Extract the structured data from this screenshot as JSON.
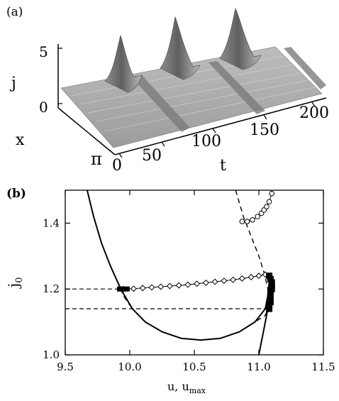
{
  "panels": {
    "a": {
      "label": "(a)",
      "z_label": "j",
      "z_ticks": [
        "5",
        "0"
      ],
      "x_label": "x",
      "x_ticks": [
        "π",
        "0"
      ],
      "t_label": "t",
      "t_ticks": [
        "0",
        "50",
        "100",
        "150",
        "200"
      ]
    },
    "b": {
      "label": "(b)",
      "ylabel_main": "j",
      "ylabel_sub": "0",
      "xlabel_main": "u, u",
      "xlabel_sub": "max",
      "xticks": [
        "9.5",
        "10.0",
        "10.5",
        "11.0",
        "11.5"
      ],
      "yticks": [
        "1.0",
        "1.2",
        "1.4"
      ]
    }
  },
  "chart_data": [
    {
      "type": "surface",
      "panel": "a",
      "x_range": [
        0,
        3.1416
      ],
      "t_range": [
        0,
        200
      ],
      "z_range": [
        0,
        5
      ],
      "pulse_times": [
        28,
        93,
        160
      ],
      "pulse_peak_j": 5,
      "baseline_j": 1.2
    },
    {
      "type": "line",
      "panel": "b",
      "xlim": [
        9.5,
        11.5
      ],
      "ylim": [
        1.0,
        1.5
      ],
      "grid": false,
      "series": [
        {
          "style": "solid",
          "points": [
            [
              9.67,
              1.5
            ],
            [
              9.72,
              1.42
            ],
            [
              9.78,
              1.34
            ],
            [
              9.85,
              1.27
            ],
            [
              9.93,
              1.2
            ],
            [
              10.02,
              1.14
            ],
            [
              10.12,
              1.1
            ],
            [
              10.25,
              1.07
            ],
            [
              10.4,
              1.05
            ],
            [
              10.55,
              1.045
            ],
            [
              10.7,
              1.05
            ],
            [
              10.85,
              1.07
            ],
            [
              10.97,
              1.1
            ],
            [
              11.05,
              1.14
            ],
            [
              11.07,
              1.18
            ],
            [
              11.08,
              1.22
            ],
            [
              11.08,
              1.24
            ]
          ]
        },
        {
          "style": "solid",
          "points": [
            [
              11.0,
              1.0
            ],
            [
              11.02,
              1.04
            ],
            [
              11.04,
              1.08
            ],
            [
              11.06,
              1.12
            ],
            [
              11.075,
              1.16
            ],
            [
              11.085,
              1.2
            ],
            [
              11.09,
              1.24
            ]
          ]
        },
        {
          "style": "dashed",
          "points": [
            [
              10.82,
              1.5
            ],
            [
              10.88,
              1.42
            ],
            [
              10.94,
              1.36
            ],
            [
              11.0,
              1.3
            ],
            [
              11.04,
              1.25
            ],
            [
              11.07,
              1.2
            ],
            [
              11.08,
              1.17
            ],
            [
              11.07,
              1.14
            ],
            [
              11.05,
              1.12
            ],
            [
              10.97,
              1.1
            ],
            [
              10.85,
              1.07
            ],
            [
              10.7,
              1.05
            ],
            [
              10.55,
              1.045
            ],
            [
              10.4,
              1.05
            ],
            [
              10.25,
              1.07
            ],
            [
              10.12,
              1.1
            ],
            [
              10.02,
              1.14
            ],
            [
              9.95,
              1.18
            ],
            [
              9.93,
              1.2
            ]
          ]
        },
        {
          "style": "diamond-markers",
          "points": [
            [
              9.95,
              1.2
            ],
            [
              10.03,
              1.201
            ],
            [
              10.1,
              1.203
            ],
            [
              10.17,
              1.205
            ],
            [
              10.24,
              1.207
            ],
            [
              10.31,
              1.209
            ],
            [
              10.38,
              1.211
            ],
            [
              10.45,
              1.213
            ],
            [
              10.52,
              1.216
            ],
            [
              10.59,
              1.219
            ],
            [
              10.66,
              1.222
            ],
            [
              10.73,
              1.225
            ],
            [
              10.8,
              1.228
            ],
            [
              10.87,
              1.232
            ],
            [
              10.94,
              1.236
            ],
            [
              11.0,
              1.24
            ],
            [
              11.05,
              1.244
            ]
          ]
        },
        {
          "style": "circle-markers",
          "points": [
            [
              10.87,
              1.405
            ],
            [
              10.91,
              1.405
            ],
            [
              10.95,
              1.41
            ],
            [
              10.99,
              1.42
            ],
            [
              11.02,
              1.43
            ],
            [
              11.04,
              1.44
            ],
            [
              11.06,
              1.45
            ],
            [
              11.08,
              1.465
            ],
            [
              11.1,
              1.49
            ]
          ]
        },
        {
          "style": "square-markers",
          "points": [
            [
              11.08,
              1.14
            ],
            [
              11.08,
              1.15
            ],
            [
              11.09,
              1.16
            ],
            [
              11.09,
              1.17
            ],
            [
              11.09,
              1.18
            ],
            [
              11.09,
              1.19
            ],
            [
              11.1,
              1.2
            ],
            [
              11.1,
              1.21
            ],
            [
              11.1,
              1.22
            ],
            [
              11.09,
              1.23
            ],
            [
              11.08,
              1.24
            ]
          ]
        },
        {
          "style": "guide-dashed",
          "points": [
            [
              9.5,
              1.2
            ],
            [
              9.95,
              1.2
            ]
          ]
        },
        {
          "style": "guide-dashed",
          "points": [
            [
              9.5,
              1.14
            ],
            [
              11.07,
              1.14
            ]
          ]
        }
      ]
    }
  ]
}
